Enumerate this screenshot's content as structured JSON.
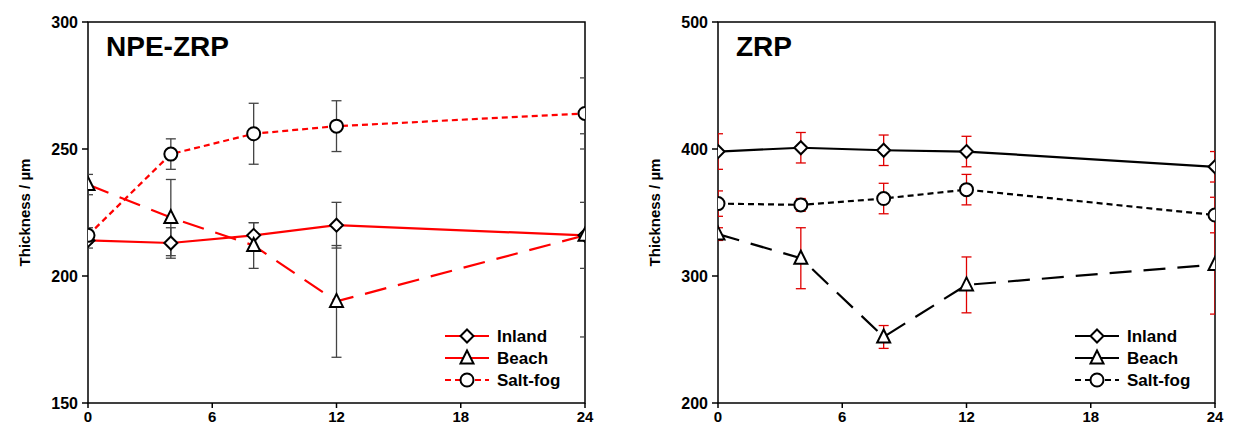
{
  "chart_data": [
    {
      "type": "line",
      "title": "NPE-ZRP",
      "y_label": "Thickness / µm",
      "x": [
        0,
        4,
        8,
        12,
        24
      ],
      "xlim": [
        0,
        24
      ],
      "xticks": [
        0,
        6,
        12,
        18,
        24
      ],
      "ylim": [
        150,
        300
      ],
      "yticks": [
        150,
        200,
        250,
        300
      ],
      "legend": "lower right",
      "series": [
        {
          "name": "Inland",
          "color": "#ff0000",
          "marker": "diamond",
          "line_style": "solid",
          "values": [
            214,
            213,
            216,
            220,
            216
          ],
          "errors": [
            3,
            6,
            5,
            9,
            13
          ]
        },
        {
          "name": "Beach",
          "color": "#ff0000",
          "marker": "triangle",
          "line_style": "long-dash",
          "values": [
            236,
            223,
            212,
            190,
            216
          ],
          "errors": [
            4,
            15,
            9,
            22,
            40
          ]
        },
        {
          "name": "Salt-fog",
          "color": "#ff0000",
          "marker": "circle",
          "line_style": "dash",
          "values": [
            216,
            248,
            256,
            259,
            264
          ],
          "errors": [
            3,
            6,
            12,
            10,
            14
          ]
        }
      ]
    },
    {
      "type": "line",
      "title": "ZRP",
      "y_label": "Thickness / µm",
      "x": [
        0,
        4,
        8,
        12,
        24
      ],
      "xlim": [
        0,
        24
      ],
      "xticks": [
        0,
        6,
        12,
        18,
        24
      ],
      "ylim": [
        200,
        500
      ],
      "yticks": [
        200,
        300,
        400,
        500
      ],
      "legend": "lower right",
      "series": [
        {
          "name": "Inland",
          "color": "#000000",
          "marker": "diamond",
          "line_style": "solid",
          "values": [
            398,
            401,
            399,
            398,
            386
          ],
          "errors": [
            14,
            12,
            12,
            12,
            12
          ]
        },
        {
          "name": "Beach",
          "color": "#000000",
          "marker": "triangle",
          "line_style": "long-dash",
          "values": [
            333,
            314,
            252,
            293,
            309
          ],
          "errors": [
            5,
            24,
            9,
            22,
            39
          ]
        },
        {
          "name": "Salt-fog",
          "color": "#000000",
          "marker": "circle",
          "line_style": "dash",
          "values": [
            357,
            356,
            361,
            368,
            348
          ],
          "errors": [
            10,
            5,
            12,
            12,
            14
          ]
        }
      ]
    }
  ]
}
